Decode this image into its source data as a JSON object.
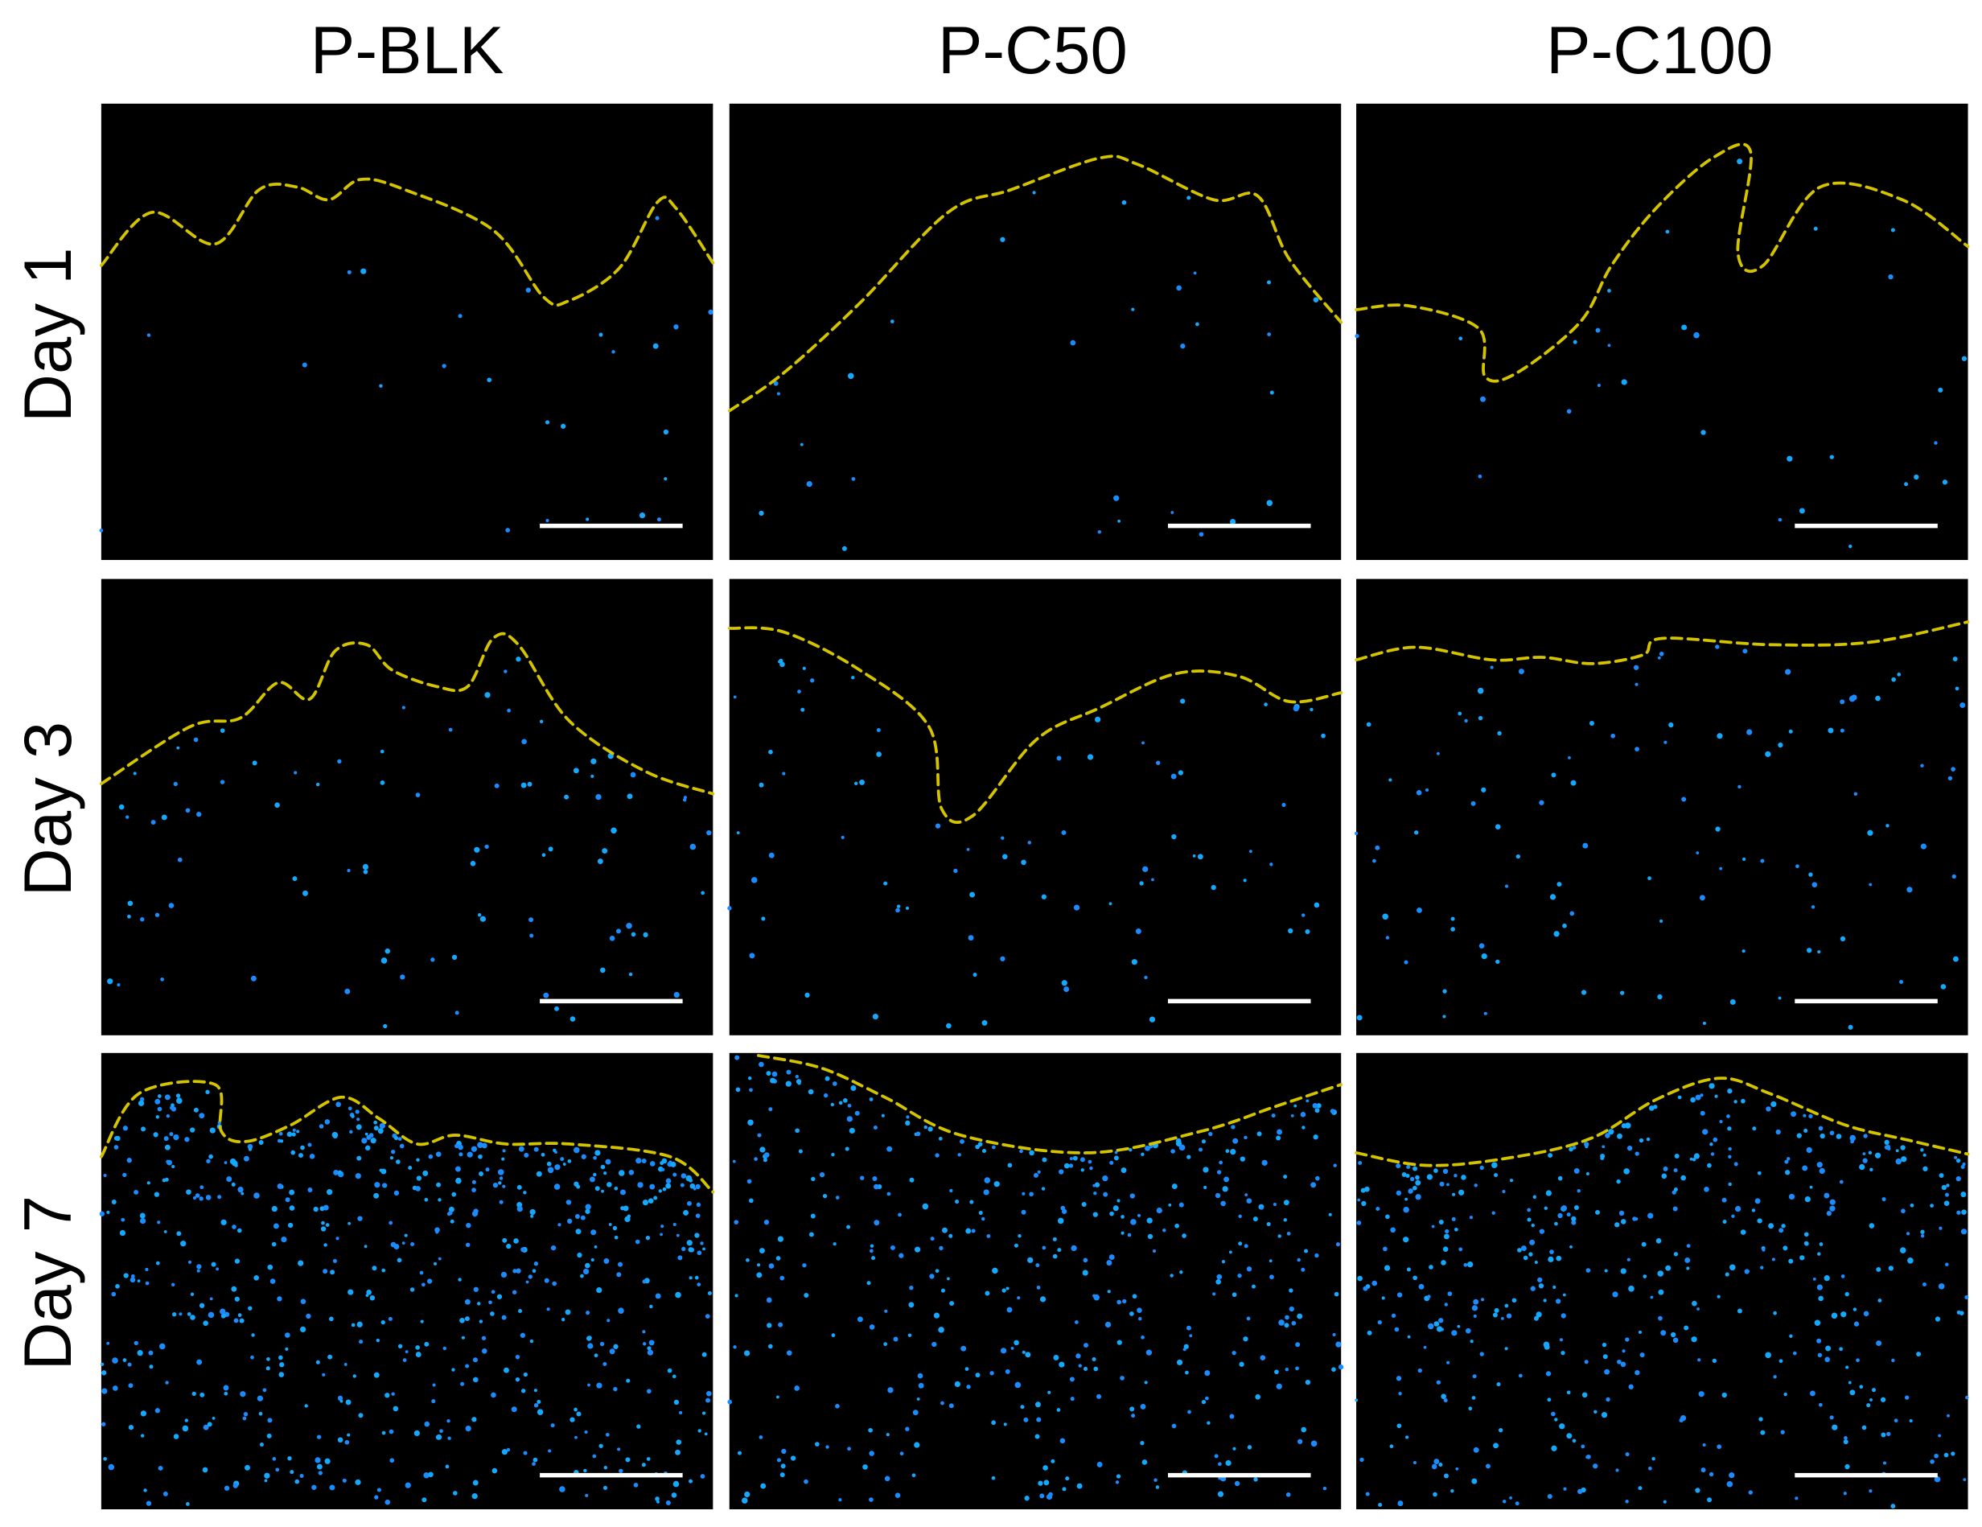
{
  "columns": [
    {
      "label": "P-BLK"
    },
    {
      "label": "P-C50"
    },
    {
      "label": "P-C100"
    }
  ],
  "rows": [
    {
      "label": "Day 1"
    },
    {
      "label": "Day 3"
    },
    {
      "label": "Day 7"
    }
  ],
  "colors": {
    "background": "#000000",
    "cells": "#1a8cff",
    "boundary": "#d4c400",
    "scale_bar": "#ffffff"
  }
}
